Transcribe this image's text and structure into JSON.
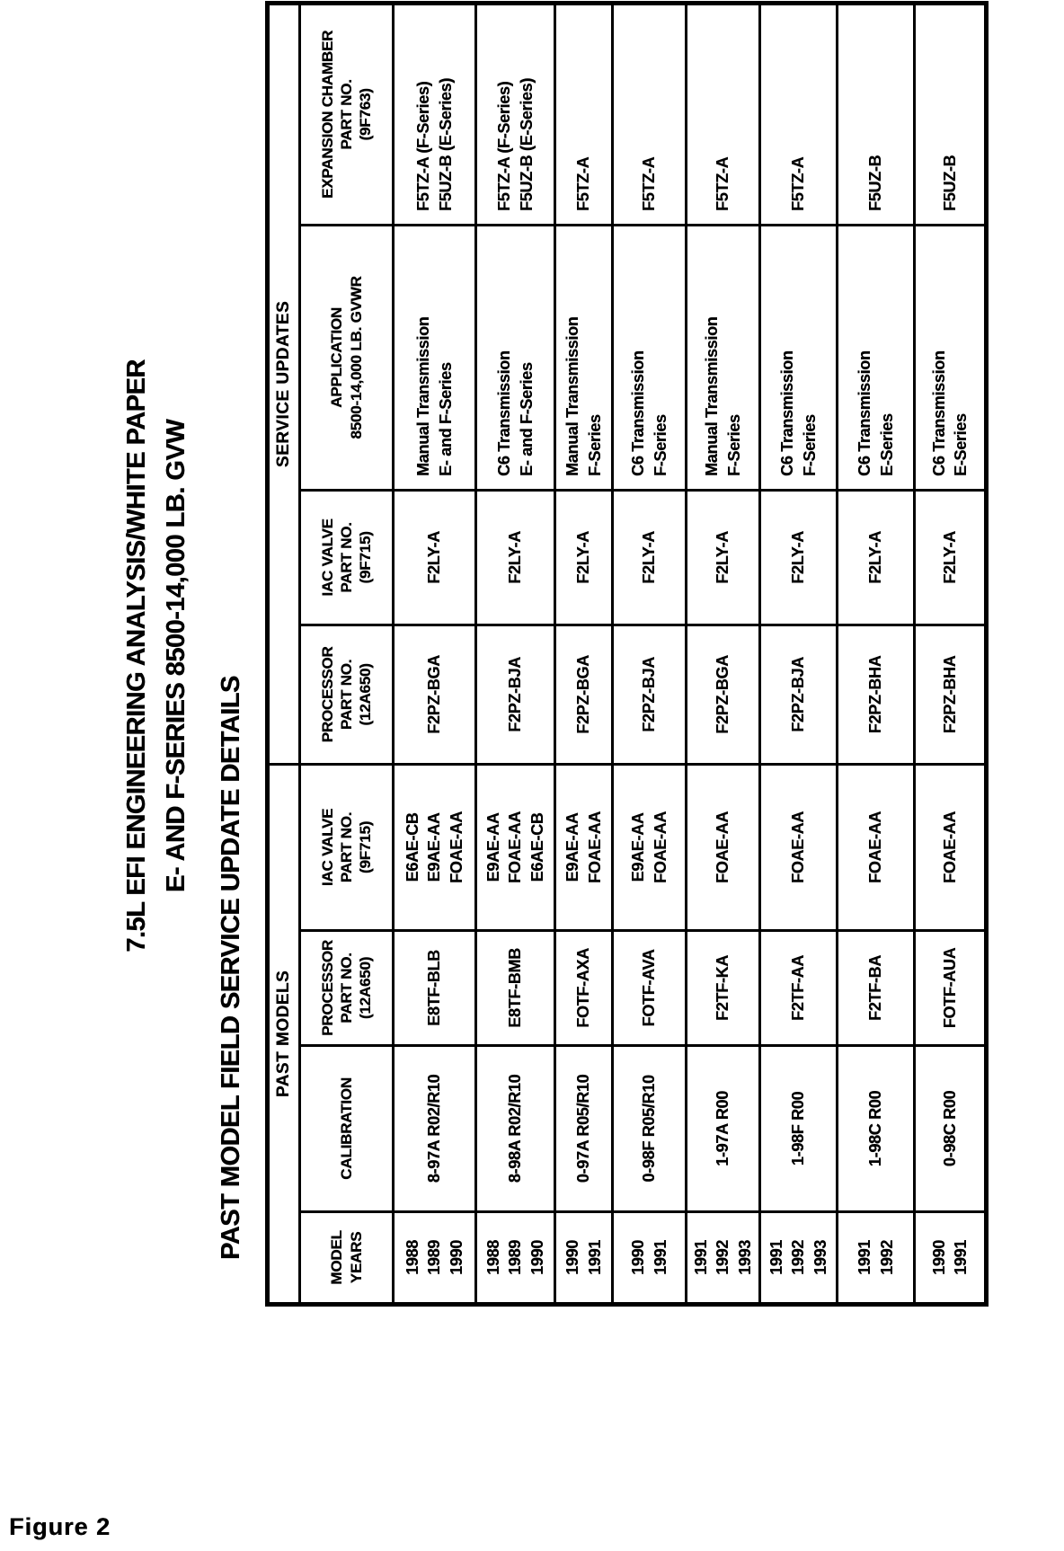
{
  "page": {
    "title_line1": "7.5L EFI ENGINEERING ANALYSIS/WHITE PAPER",
    "title_line2": "E- AND F-SERIES 8500-14,000 LB. GVW",
    "section_title": "PAST MODEL FIELD SERVICE UPDATE DETAILS",
    "figure_label": "Figure 2"
  },
  "table": {
    "span_headers": {
      "past_models": "PAST MODELS",
      "service_updates": "SERVICE UPDATES"
    },
    "columns": [
      {
        "id": "model_years",
        "lines": [
          "MODEL",
          "YEARS"
        ]
      },
      {
        "id": "calibration",
        "lines": [
          "CALIBRATION"
        ]
      },
      {
        "id": "processor_past",
        "lines": [
          "PROCESSOR",
          "PART NO.",
          "(12A650)"
        ]
      },
      {
        "id": "iac_past",
        "lines": [
          "IAC VALVE",
          "PART NO.",
          "(9F715)"
        ]
      },
      {
        "id": "processor_service",
        "lines": [
          "PROCESSOR",
          "PART NO.",
          "(12A650)"
        ]
      },
      {
        "id": "iac_service",
        "lines": [
          "IAC VALVE",
          "PART NO.",
          "(9F715)"
        ]
      },
      {
        "id": "application",
        "lines": [
          "APPLICATION",
          "8500-14,000 LB. GVWR"
        ]
      },
      {
        "id": "expansion",
        "lines": [
          "EXPANSION CHAMBER",
          "PART NO.",
          "(9F763)"
        ]
      }
    ],
    "rows": [
      {
        "model_years": [
          "1988",
          "1989",
          "1990"
        ],
        "calibration": [
          "8-97A  R02/R10"
        ],
        "processor_past": [
          "E8TF-BLB"
        ],
        "iac_past": [
          "E6AE-CB",
          "E9AE-AA",
          "FOAE-AA"
        ],
        "processor_service": [
          "F2PZ-BGA"
        ],
        "iac_service": [
          "F2LY-A"
        ],
        "application": [
          "Manual Transmission",
          "E- and F-Series"
        ],
        "expansion": [
          "F5TZ-A (F-Series)",
          "F5UZ-B (E-Series)"
        ]
      },
      {
        "model_years": [
          "1988",
          "1989",
          "1990"
        ],
        "calibration": [
          "8-98A  R02/R10"
        ],
        "processor_past": [
          "E8TF-BMB"
        ],
        "iac_past": [
          "E9AE-AA",
          "FOAE-AA",
          "E6AE-CB"
        ],
        "processor_service": [
          "F2PZ-BJA"
        ],
        "iac_service": [
          "F2LY-A"
        ],
        "application": [
          "C6 Transmission",
          "E- and F-Series"
        ],
        "expansion": [
          "F5TZ-A (F-Series)",
          "F5UZ-B (E-Series)"
        ]
      },
      {
        "model_years": [
          "1990",
          "1991"
        ],
        "calibration": [
          "0-97A  R05/R10"
        ],
        "processor_past": [
          "FOTF-AXA"
        ],
        "iac_past": [
          "E9AE-AA",
          "FOAE-AA"
        ],
        "processor_service": [
          "F2PZ-BGA"
        ],
        "iac_service": [
          "F2LY-A"
        ],
        "application": [
          "Manual Transmission",
          "F-Series"
        ],
        "expansion": [
          "F5TZ-A"
        ]
      },
      {
        "model_years": [
          "1990",
          "1991"
        ],
        "calibration": [
          "0-98F  R05/R10"
        ],
        "processor_past": [
          "FOTF-AVA"
        ],
        "iac_past": [
          "E9AE-AA",
          "FOAE-AA"
        ],
        "processor_service": [
          "F2PZ-BJA"
        ],
        "iac_service": [
          "F2LY-A"
        ],
        "application": [
          "C6 Transmission",
          "F-Series"
        ],
        "expansion": [
          "F5TZ-A"
        ]
      },
      {
        "model_years": [
          "1991",
          "1992",
          "1993"
        ],
        "calibration": [
          "1-97A  R00"
        ],
        "processor_past": [
          "F2TF-KA"
        ],
        "iac_past": [
          "FOAE-AA"
        ],
        "processor_service": [
          "F2PZ-BGA"
        ],
        "iac_service": [
          "F2LY-A"
        ],
        "application": [
          "Manual Transmission",
          "F-Series"
        ],
        "expansion": [
          "F5TZ-A"
        ]
      },
      {
        "model_years": [
          "1991",
          "1992",
          "1993"
        ],
        "calibration": [
          "1-98F  R00"
        ],
        "processor_past": [
          "F2TF-AA"
        ],
        "iac_past": [
          "FOAE-AA"
        ],
        "processor_service": [
          "F2PZ-BJA"
        ],
        "iac_service": [
          "F2LY-A"
        ],
        "application": [
          "C6 Transmission",
          "F-Series"
        ],
        "expansion": [
          "F5TZ-A"
        ]
      },
      {
        "model_years": [
          "1991",
          "1992"
        ],
        "calibration": [
          "1-98C  R00"
        ],
        "processor_past": [
          "F2TF-BA"
        ],
        "iac_past": [
          "FOAE-AA"
        ],
        "processor_service": [
          "F2PZ-BHA"
        ],
        "iac_service": [
          "F2LY-A"
        ],
        "application": [
          "C6 Transmission",
          "E-Series"
        ],
        "expansion": [
          "F5UZ-B"
        ]
      },
      {
        "model_years": [
          "1990",
          "1991"
        ],
        "calibration": [
          "0-98C  R00"
        ],
        "processor_past": [
          "FOTF-AUA"
        ],
        "iac_past": [
          "FOAE-AA"
        ],
        "processor_service": [
          "F2PZ-BHA"
        ],
        "iac_service": [
          "F2LY-A"
        ],
        "application": [
          "C6 Transmission",
          "E-Series"
        ],
        "expansion": [
          "F5UZ-B"
        ]
      }
    ]
  }
}
